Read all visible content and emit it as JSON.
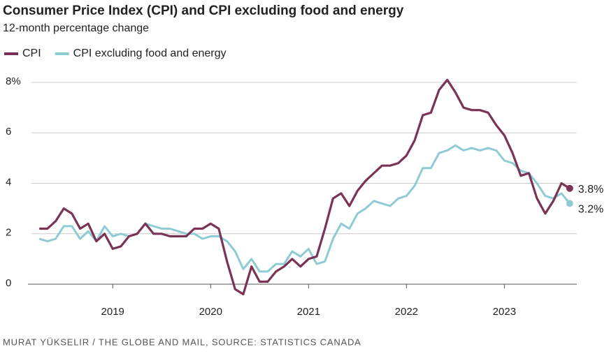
{
  "chart_data": {
    "type": "line",
    "title": "Consumer Price Index (CPI) and CPI excluding food and energy",
    "subtitle": "12-month percentage change",
    "source": "MURAT YÜKSELIR / THE GLOBE AND MAIL, SOURCE: STATISTICS CANADA",
    "x": [
      2018.25,
      2018.333,
      2018.417,
      2018.5,
      2018.583,
      2018.667,
      2018.75,
      2018.833,
      2018.917,
      2019,
      2019.083,
      2019.167,
      2019.25,
      2019.333,
      2019.417,
      2019.5,
      2019.583,
      2019.667,
      2019.75,
      2019.833,
      2019.917,
      2020,
      2020.083,
      2020.167,
      2020.25,
      2020.333,
      2020.417,
      2020.5,
      2020.583,
      2020.667,
      2020.75,
      2020.833,
      2020.917,
      2021,
      2021.083,
      2021.167,
      2021.25,
      2021.333,
      2021.417,
      2021.5,
      2021.583,
      2021.667,
      2021.75,
      2021.833,
      2021.917,
      2022,
      2022.083,
      2022.167,
      2022.25,
      2022.333,
      2022.417,
      2022.5,
      2022.583,
      2022.667,
      2022.75,
      2022.833,
      2022.917,
      2023,
      2023.083,
      2023.167,
      2023.25,
      2023.333,
      2023.417,
      2023.5,
      2023.583,
      2023.667
    ],
    "series": [
      {
        "name": "CPI",
        "color": "#7b3355",
        "values": [
          2.2,
          2.2,
          2.5,
          3.0,
          2.8,
          2.2,
          2.4,
          1.7,
          2.0,
          1.4,
          1.5,
          1.9,
          2.0,
          2.4,
          2.0,
          2.0,
          1.9,
          1.9,
          1.9,
          2.2,
          2.2,
          2.4,
          2.2,
          0.9,
          -0.2,
          -0.4,
          0.7,
          0.1,
          0.1,
          0.5,
          0.7,
          1.0,
          0.7,
          1.0,
          1.1,
          2.2,
          3.4,
          3.6,
          3.1,
          3.7,
          4.1,
          4.4,
          4.7,
          4.7,
          4.8,
          5.1,
          5.7,
          6.7,
          6.8,
          7.7,
          8.1,
          7.6,
          7.0,
          6.9,
          6.9,
          6.8,
          6.3,
          5.9,
          5.2,
          4.3,
          4.4,
          3.4,
          2.8,
          3.3,
          4.0,
          3.8
        ],
        "value_labels": [
          null,
          null,
          null,
          null,
          null,
          null,
          null,
          null,
          null,
          null,
          null,
          null,
          null,
          null,
          null,
          null,
          null,
          null,
          null,
          null,
          null,
          null,
          null,
          null,
          null,
          null,
          null,
          null,
          null,
          null,
          null,
          null,
          null,
          null,
          null,
          null,
          null,
          null,
          null,
          null,
          null,
          null,
          null,
          null,
          null,
          null,
          null,
          null,
          null,
          null,
          null,
          null,
          null,
          null,
          null,
          null,
          null,
          null,
          null,
          null,
          null,
          null,
          null,
          null,
          null,
          "3.8%"
        ]
      },
      {
        "name": "CPI excluding food and energy",
        "color": "#8ecbd3",
        "values": [
          1.8,
          1.7,
          1.8,
          2.3,
          2.3,
          1.8,
          2.1,
          1.7,
          2.3,
          1.9,
          2.0,
          1.9,
          2.0,
          2.4,
          2.3,
          2.2,
          2.2,
          2.1,
          2.0,
          2.0,
          1.8,
          1.9,
          1.9,
          1.7,
          1.3,
          0.6,
          1.0,
          0.5,
          0.5,
          0.8,
          0.8,
          1.3,
          1.1,
          1.4,
          0.8,
          0.9,
          1.8,
          2.4,
          2.2,
          2.8,
          3.0,
          3.3,
          3.2,
          3.1,
          3.4,
          3.5,
          3.9,
          4.6,
          4.6,
          5.2,
          5.3,
          5.5,
          5.3,
          5.4,
          5.3,
          5.4,
          5.3,
          4.9,
          4.8,
          4.5,
          4.4,
          4.0,
          3.5,
          3.4,
          3.6,
          3.2
        ],
        "value_labels": [
          null,
          null,
          null,
          null,
          null,
          null,
          null,
          null,
          null,
          null,
          null,
          null,
          null,
          null,
          null,
          null,
          null,
          null,
          null,
          null,
          null,
          null,
          null,
          null,
          null,
          null,
          null,
          null,
          null,
          null,
          null,
          null,
          null,
          null,
          null,
          null,
          null,
          null,
          null,
          null,
          null,
          null,
          null,
          null,
          null,
          null,
          null,
          null,
          null,
          null,
          null,
          null,
          null,
          null,
          null,
          null,
          null,
          null,
          null,
          null,
          null,
          null,
          null,
          null,
          null,
          "3.2%"
        ]
      }
    ],
    "xlim": [
      2018.17,
      2023.74
    ],
    "xticks": [
      2019,
      2020,
      2021,
      2022,
      2023
    ],
    "ylim": [
      0,
      8
    ],
    "yticks": [
      0,
      2,
      4,
      6,
      {
        "value": 8,
        "label": "8%"
      }
    ],
    "grid": true,
    "legend": "top-left"
  }
}
